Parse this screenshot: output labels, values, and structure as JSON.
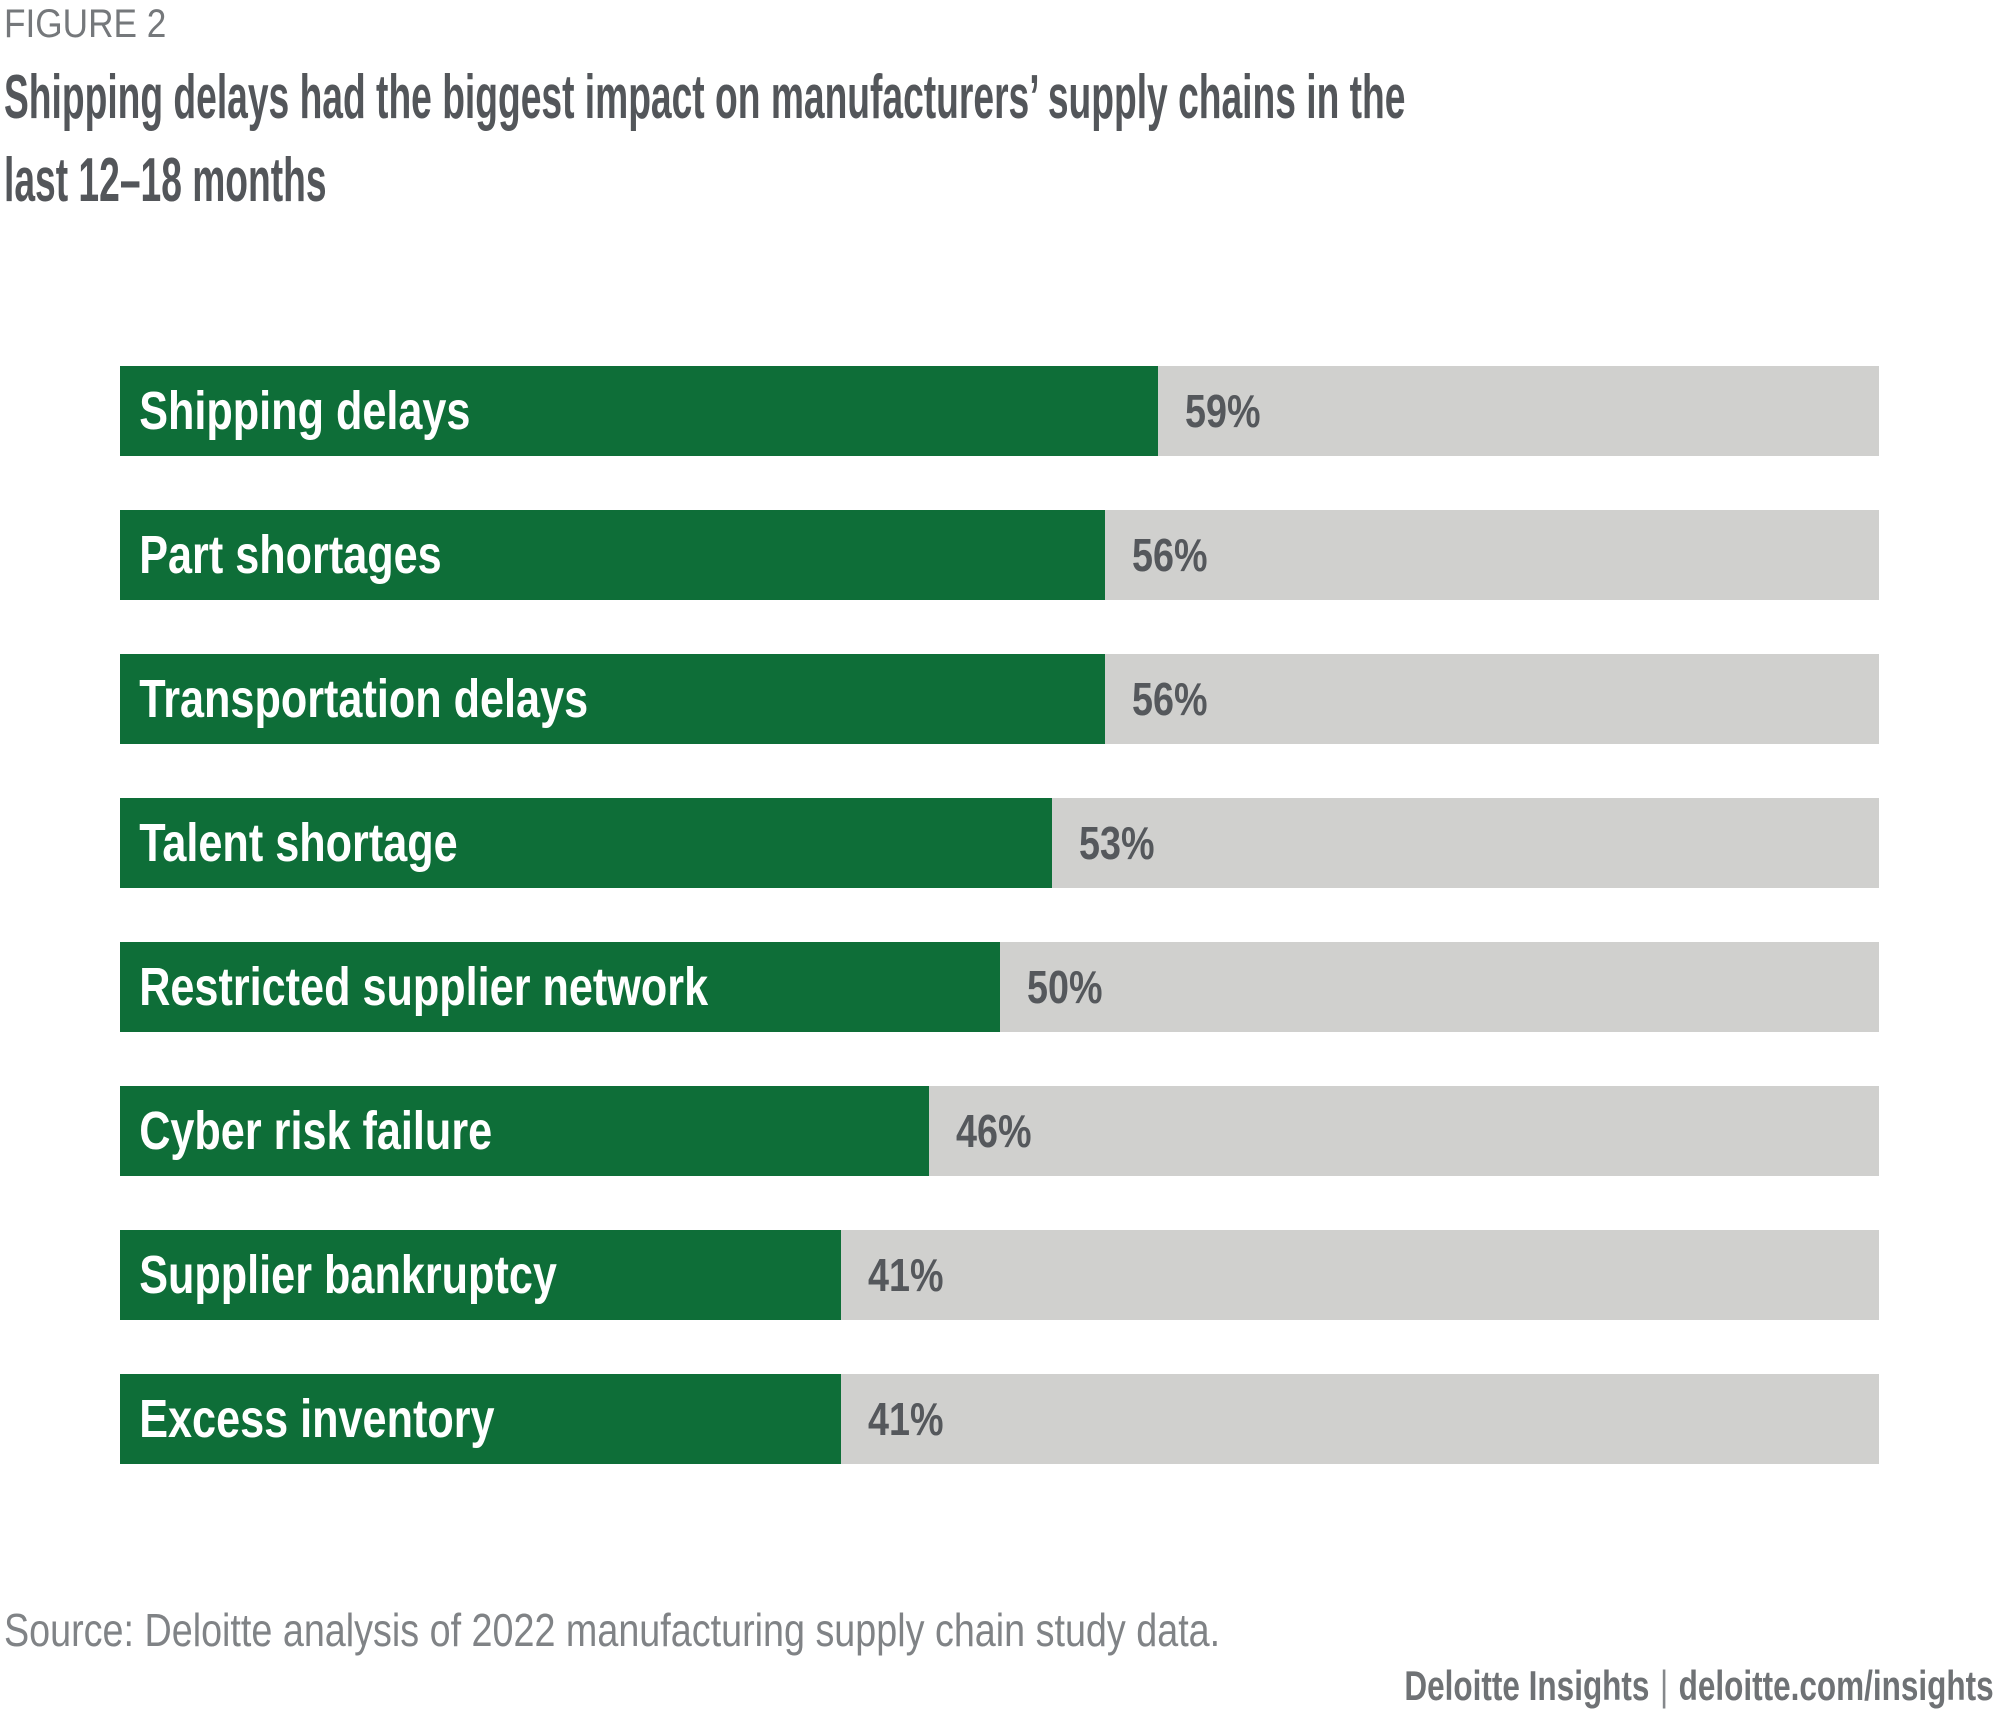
{
  "header": {
    "figure_label": "FIGURE 2",
    "title_line1": "Shipping delays had the biggest impact on manufacturers’ supply chains in the",
    "title_line2": "last 12–18 months"
  },
  "chart_data": {
    "type": "bar",
    "orientation": "horizontal",
    "title": "Shipping delays had the biggest impact on manufacturers’ supply chains in the last 12–18 months",
    "categories": [
      "Shipping delays",
      "Part shortages",
      "Transportation delays",
      "Talent shortage",
      "Restricted supplier network",
      "Cyber risk failure",
      "Supplier bankruptcy",
      "Excess inventory"
    ],
    "values": [
      59,
      56,
      56,
      53,
      50,
      46,
      41,
      41
    ],
    "value_suffix": "%",
    "xlim": [
      0,
      100
    ],
    "grid": false,
    "legend": "none",
    "bar_color": "#0e6e38",
    "track_color": "#d0d0ce",
    "bar_label_color": "#ffffff",
    "value_label_color": "#55585c"
  },
  "footer": {
    "source": "Source: Deloitte analysis of 2022 manufacturing supply chain study data.",
    "brand": "Deloitte Insights",
    "separator": "|",
    "site": "deloitte.com/insights"
  }
}
